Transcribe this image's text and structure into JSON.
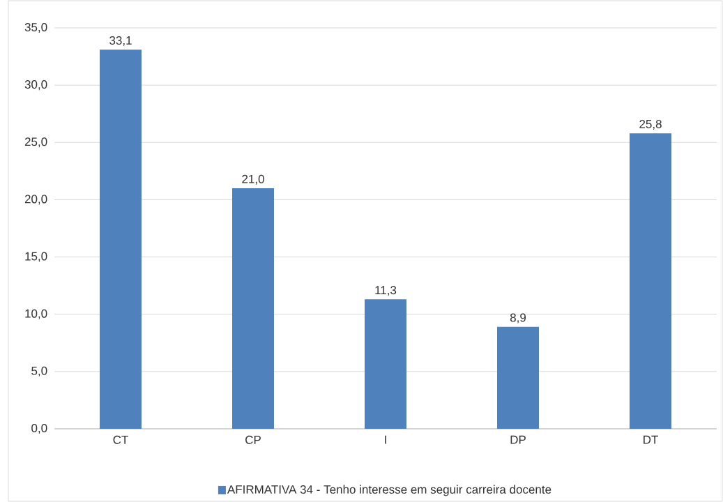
{
  "chart_data": {
    "type": "bar",
    "categories": [
      "CT",
      "CP",
      "I",
      "DP",
      "DT"
    ],
    "series": [
      {
        "name": "AFIRMATIVA 34 - Tenho interesse em seguir carreira docente",
        "color": "#4f81bd",
        "values": [
          33.1,
          21.0,
          11.3,
          8.9,
          25.8
        ],
        "value_labels": [
          "33,1",
          "21,0",
          "11,3",
          "8,9",
          "25,8"
        ]
      }
    ],
    "ylim": [
      0,
      35
    ],
    "yticks": [
      {
        "value": 0,
        "label": "0,0"
      },
      {
        "value": 5,
        "label": "5,0"
      },
      {
        "value": 10,
        "label": "10,0"
      },
      {
        "value": 15,
        "label": "15,0"
      },
      {
        "value": 20,
        "label": "20,0"
      },
      {
        "value": 25,
        "label": "25,0"
      },
      {
        "value": 30,
        "label": "30,0"
      },
      {
        "value": 35,
        "label": "35,0"
      }
    ],
    "grid": "y",
    "legend": "bottom"
  }
}
